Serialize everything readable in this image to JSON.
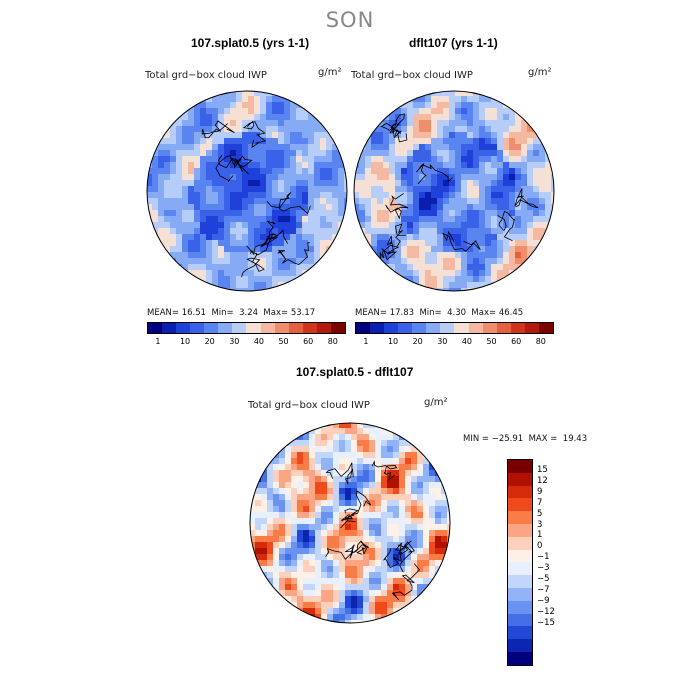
{
  "season": "SON",
  "panels": [
    {
      "title": "107.splat0.5 (yrs 1-1)",
      "field_label": "Total grd−box cloud IWP",
      "units": "g/m²",
      "stats": {
        "mean_label": "MEAN=",
        "mean": "16.51",
        "min_label": "Min=",
        "min": "3.24",
        "max_label": "Max=",
        "max": "53.17"
      },
      "colorbar_ticks": [
        "1",
        "10",
        "20",
        "30",
        "40",
        "50",
        "60",
        "80"
      ]
    },
    {
      "title": "dflt107 (yrs 1-1)",
      "field_label": "Total grd−box cloud IWP",
      "units": "g/m²",
      "stats": {
        "mean_label": "MEAN=",
        "mean": "17.83",
        "min_label": "Min=",
        "min": "4.30",
        "max_label": "Max=",
        "max": "46.45"
      },
      "colorbar_ticks": [
        "1",
        "10",
        "20",
        "30",
        "40",
        "50",
        "60",
        "80"
      ]
    }
  ],
  "diff_panel": {
    "title": "107.splat0.5 - dflt107",
    "field_label": "Total grd−box cloud IWP",
    "units": "g/m²",
    "minmax": "MIN = −25.91  MAX =  19.43",
    "colorbar_ticks": [
      "15",
      "12",
      "9",
      "7",
      "5",
      "3",
      "1",
      "0",
      "−1",
      "−3",
      "−5",
      "−7",
      "−9",
      "−12",
      "−15"
    ]
  },
  "colors": {
    "sequential": [
      "#00007f",
      "#0a1fb0",
      "#1f40d9",
      "#3a62e8",
      "#5a84f0",
      "#87aaf5",
      "#b6cdf9",
      "#f5e0d6",
      "#f5b8a1",
      "#ef8d6c",
      "#e4603f",
      "#d0351c",
      "#b21a0d",
      "#7a0000"
    ],
    "diverging": [
      "#7a0000",
      "#b01100",
      "#d42b0a",
      "#ee4a1c",
      "#f97b46",
      "#fca584",
      "#fdd0bc",
      "#fdf0e6",
      "#e8f0fd",
      "#c2d6fb",
      "#92b4f6",
      "#6a92f0",
      "#4470e6",
      "#2148d6",
      "#0c25b0",
      "#00007f"
    ]
  }
}
